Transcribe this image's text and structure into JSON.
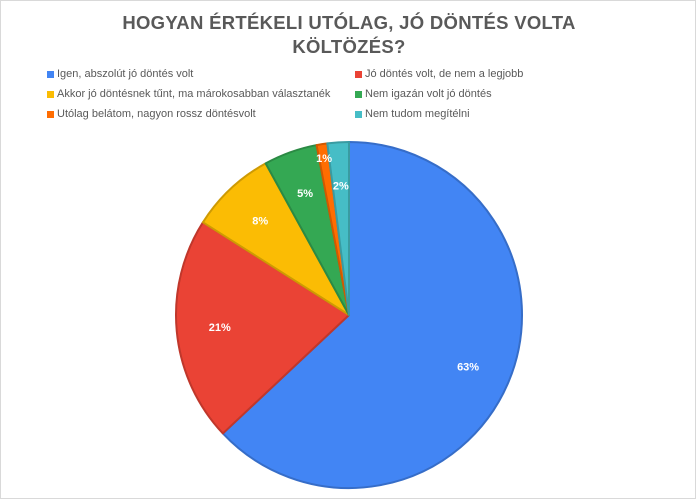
{
  "chart_data": {
    "type": "pie",
    "title_lines": [
      "HOGYAN ÉRTÉKELI UTÓLAG, JÓ DÖNTÉS VOLTA",
      "KÖLTÖZÉS?"
    ],
    "legend_placement": "top",
    "slices": [
      {
        "label": "Igen, abszolút jó döntés volt",
        "value": 63,
        "value_label": "63%",
        "color": "#4285f4"
      },
      {
        "label": "Jó döntés volt, de nem a legjobb",
        "value": 21,
        "value_label": "21%",
        "color": "#ea4335"
      },
      {
        "label": "Akkor jó döntésnek tűnt, ma márokosabban választanék",
        "value": 8,
        "value_label": "8%",
        "color": "#fbbc04"
      },
      {
        "label": "Nem igazán volt jó döntés",
        "value": 5,
        "value_label": "5%",
        "color": "#34a853"
      },
      {
        "label": "Utólag belátom, nagyon rossz döntésvolt",
        "value": 1,
        "value_label": "1%",
        "color": "#ff6d01"
      },
      {
        "label": "Nem tudom megítélni",
        "value": 2,
        "value_label": "2%",
        "color": "#46bdc6"
      }
    ]
  }
}
